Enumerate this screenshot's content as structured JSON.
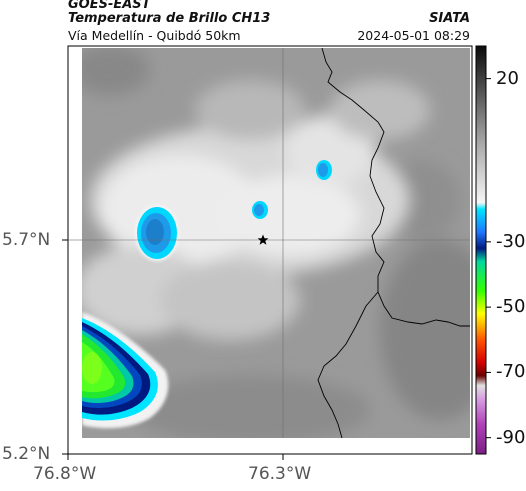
{
  "header": {
    "satellite": "GOES-EAST",
    "product": "Temperatura de Brillo CH13",
    "region": "Vía Medellín - Quibdó 50km",
    "organization": "SIATA",
    "timestamp": "2024-05-01 08:29"
  },
  "axes": {
    "lat_labels": [
      "5.7°N",
      "5.2°N"
    ],
    "lon_labels": [
      "76.8°W",
      "76.3°W"
    ]
  },
  "colorbar": {
    "tick_labels": [
      "20",
      "-30",
      "-50",
      "-70",
      "-90"
    ],
    "min": -95,
    "max": 30,
    "stops": [
      {
        "value": 30,
        "color": "#0b0b0b"
      },
      {
        "value": 15,
        "color": "#5a5a5a"
      },
      {
        "value": 0,
        "color": "#a9a9a9"
      },
      {
        "value": -18,
        "color": "#f5f5f5"
      },
      {
        "value": -20,
        "color": "#00e5ff"
      },
      {
        "value": -27,
        "color": "#1e78ff"
      },
      {
        "value": -32,
        "color": "#001a80"
      },
      {
        "value": -36,
        "color": "#00d8a0"
      },
      {
        "value": -45,
        "color": "#33ff00"
      },
      {
        "value": -52,
        "color": "#ffff00"
      },
      {
        "value": -60,
        "color": "#ff5500"
      },
      {
        "value": -67,
        "color": "#d40000"
      },
      {
        "value": -71,
        "color": "#6a0000"
      },
      {
        "value": -74,
        "color": "#e0e0e0"
      },
      {
        "value": -78,
        "color": "#d8a0e0"
      },
      {
        "value": -86,
        "color": "#b040b8"
      },
      {
        "value": -95,
        "color": "#7a1f85"
      }
    ]
  },
  "map": {
    "marker": "star-marker",
    "colors": {
      "background": "#9a9a9a",
      "cloud": "#ededed",
      "border_line": "#000000",
      "grid_line": "#666666"
    }
  }
}
